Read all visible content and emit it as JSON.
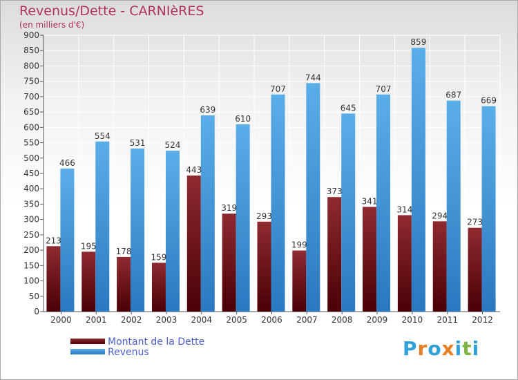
{
  "chart_data": {
    "type": "bar",
    "title": "Revenus/Dette - CARNIèRES",
    "subtitle": "(en milliers d'€)",
    "categories": [
      "2000",
      "2001",
      "2002",
      "2003",
      "2004",
      "2005",
      "2006",
      "2007",
      "2008",
      "2009",
      "2010",
      "2011",
      "2012"
    ],
    "series": [
      {
        "name": "Montant de la Dette",
        "color": "#7a0f12",
        "values": [
          213,
          195,
          178,
          159,
          443,
          319,
          293,
          199,
          373,
          341,
          314,
          294,
          273
        ]
      },
      {
        "name": "Revenus",
        "color": "#3a90d8",
        "values": [
          466,
          554,
          531,
          524,
          639,
          610,
          707,
          744,
          645,
          707,
          859,
          687,
          669
        ]
      }
    ],
    "ylim": [
      0,
      900
    ],
    "yticks": [
      0,
      50,
      100,
      150,
      200,
      250,
      300,
      350,
      400,
      450,
      500,
      550,
      600,
      650,
      700,
      750,
      800,
      850,
      900
    ],
    "grid": true,
    "legend_position": "bottom-left"
  },
  "logo": {
    "letters": [
      "P",
      "r",
      "o",
      "x",
      "i",
      "t",
      "i"
    ],
    "colors": [
      "#2fa0d8",
      "#e67e22",
      "#2fa0d8",
      "#e67e22",
      "#2fa0d8",
      "#7cb342",
      "#2fa0d8"
    ]
  }
}
